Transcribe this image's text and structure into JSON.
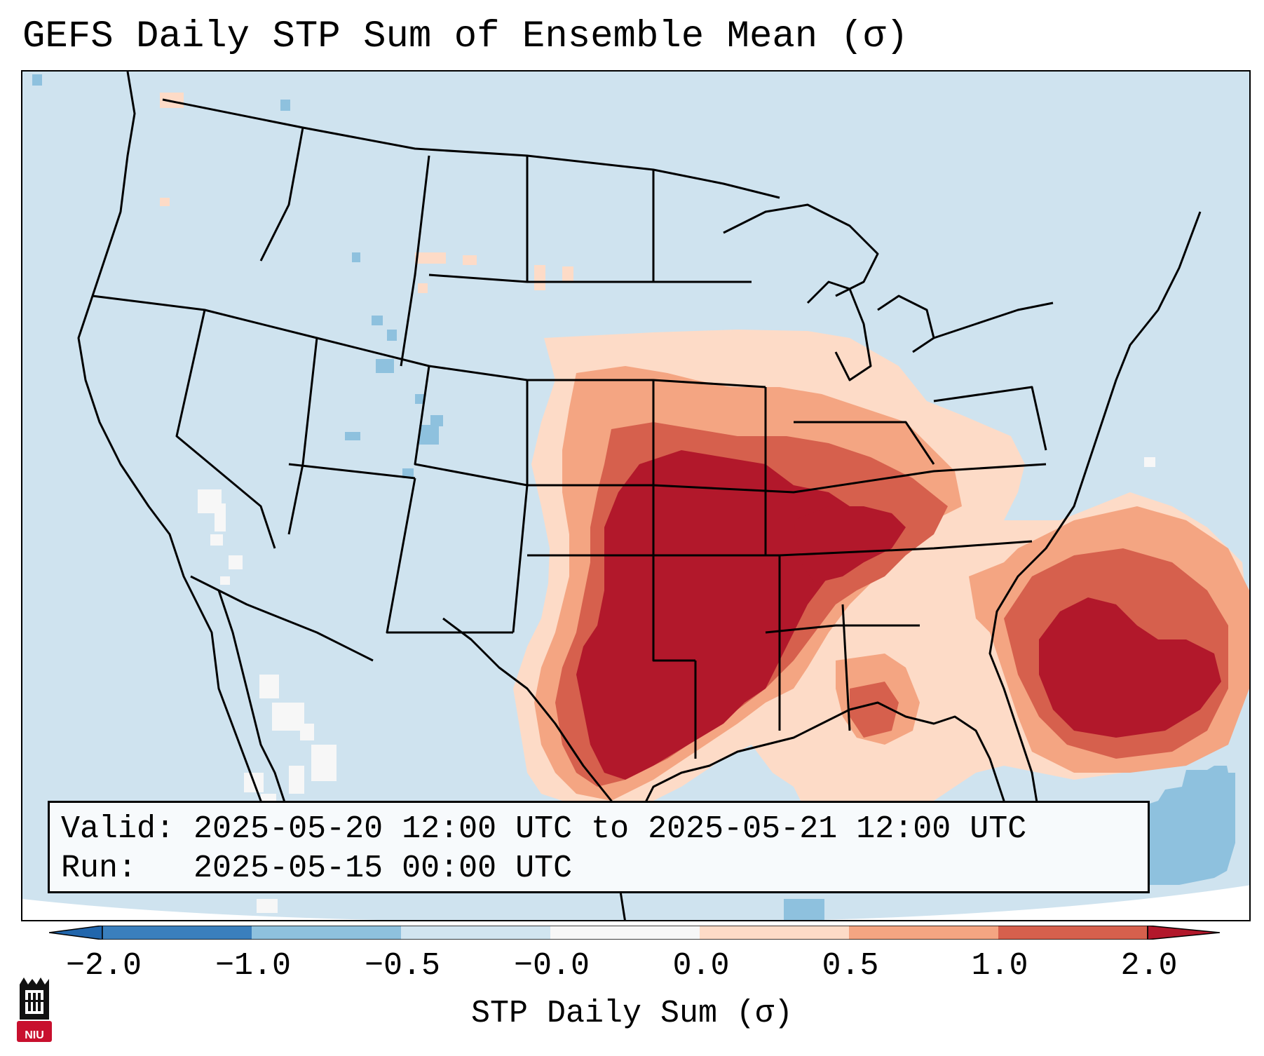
{
  "title": "GEFS Daily STP Sum of Ensemble Mean (σ)",
  "info": {
    "valid_label": "Valid:",
    "valid_value": "2025-05-20 12:00 UTC to 2025-05-21 12:00 UTC",
    "run_label": "Run:",
    "run_value": "2025-05-15 00:00 UTC"
  },
  "colorbar": {
    "label": "STP Daily Sum (σ)",
    "ticks": [
      "−2.0",
      "−1.0",
      "−0.5",
      "−0.0",
      "0.0",
      "0.5",
      "1.0",
      "2.0"
    ],
    "colors": [
      "#3a7fbd",
      "#8ec1de",
      "#d1e5f0",
      "#f7f7f7",
      "#fddbc7",
      "#f4a582",
      "#d6604d",
      "#b2182b"
    ]
  },
  "map": {
    "projection": "Lambert Conformal, CONUS",
    "max_anomaly_region": "Southern Plains to Lower Mississippi Valley",
    "secondary_max_region": "Atlantic offshore, east of Georgia/South Carolina"
  },
  "logo": {
    "text": "NIU",
    "color": "#c8102e"
  }
}
